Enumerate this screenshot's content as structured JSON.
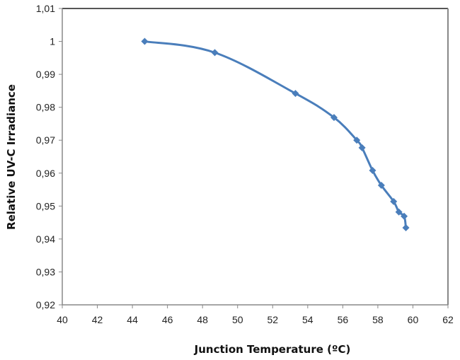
{
  "chart_data": {
    "type": "line",
    "title": "",
    "xlabel": "Junction Temperature (ºC)",
    "ylabel": "Relative UV-C  Irradiance",
    "xlim": [
      40,
      62
    ],
    "ylim": [
      0.92,
      1.01
    ],
    "x_ticks": [
      "40",
      "42",
      "44",
      "46",
      "48",
      "50",
      "52",
      "54",
      "56",
      "58",
      "60",
      "62"
    ],
    "y_ticks": [
      "0,92",
      "0,93",
      "0,94",
      "0,95",
      "0,96",
      "0,97",
      "0,98",
      "0,99",
      "1",
      "1,01"
    ],
    "grid": false,
    "legend": null,
    "series": [
      {
        "name": "Relative UV-C Irradiance",
        "color": "#4a7ebb",
        "marker": "diamond",
        "smoothed": true,
        "x": [
          44.7,
          48.7,
          53.3,
          55.5,
          56.8,
          57.1,
          57.7,
          58.2,
          58.9,
          59.2,
          59.5,
          59.6
        ],
        "y": [
          1.0,
          0.9966,
          0.9842,
          0.9769,
          0.97,
          0.9677,
          0.9608,
          0.9563,
          0.9514,
          0.9482,
          0.9469,
          0.9434
        ]
      }
    ]
  }
}
